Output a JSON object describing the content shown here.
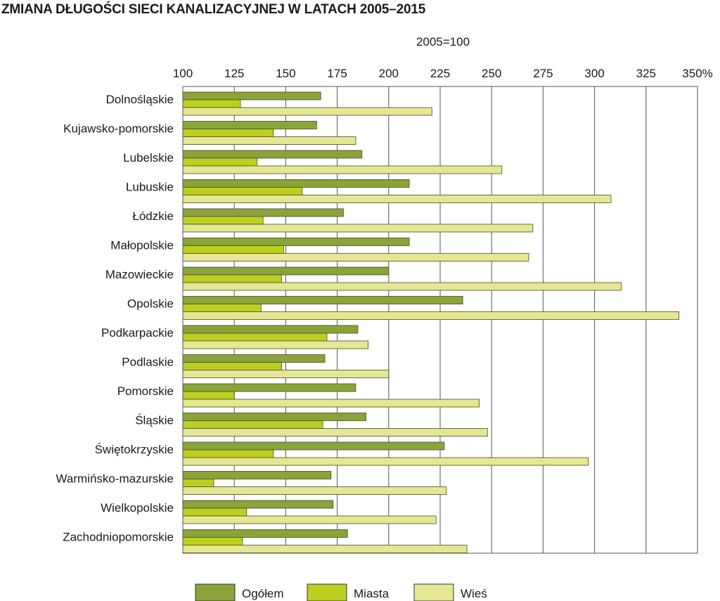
{
  "chart_data": {
    "type": "bar",
    "orientation": "horizontal",
    "title": "ZMIANA DŁUGOŚCI SIECI KANALIZACYJNEJ W LATACH 2005–2015",
    "subtitle": "2005=100",
    "xlim": [
      100,
      350
    ],
    "x_ticks": [
      "100",
      "125",
      "150",
      "175",
      "200",
      "225",
      "250",
      "275",
      "300",
      "325",
      "350%"
    ],
    "grid": true,
    "legend_position": "bottom",
    "categories": [
      "Dolnośląskie",
      "Kujawsko-pomorskie",
      "Lubelskie",
      "Lubuskie",
      "Łódzkie",
      "Małopolskie",
      "Mazowieckie",
      "Opolskie",
      "Podkarpackie",
      "Podlaskie",
      "Pomorskie",
      "Śląskie",
      "Świętokrzyskie",
      "Warmińsko-mazurskie",
      "Wielkopolskie",
      "Zachodniopomorskie"
    ],
    "series": [
      {
        "name": "Ogółem",
        "color": "#8aa43a",
        "values": [
          167,
          165,
          187,
          210,
          178,
          210,
          200,
          236,
          185,
          169,
          184,
          189,
          227,
          172,
          173,
          180
        ]
      },
      {
        "name": "Miasta",
        "color": "#bccf1e",
        "values": [
          128,
          144,
          136,
          158,
          139,
          149,
          148,
          138,
          170,
          148,
          125,
          168,
          144,
          115,
          131,
          129
        ]
      },
      {
        "name": "Wieś",
        "color": "#e5e792",
        "values": [
          221,
          184,
          255,
          308,
          270,
          268,
          313,
          341,
          190,
          200,
          244,
          248,
          297,
          228,
          223,
          238
        ]
      }
    ]
  }
}
